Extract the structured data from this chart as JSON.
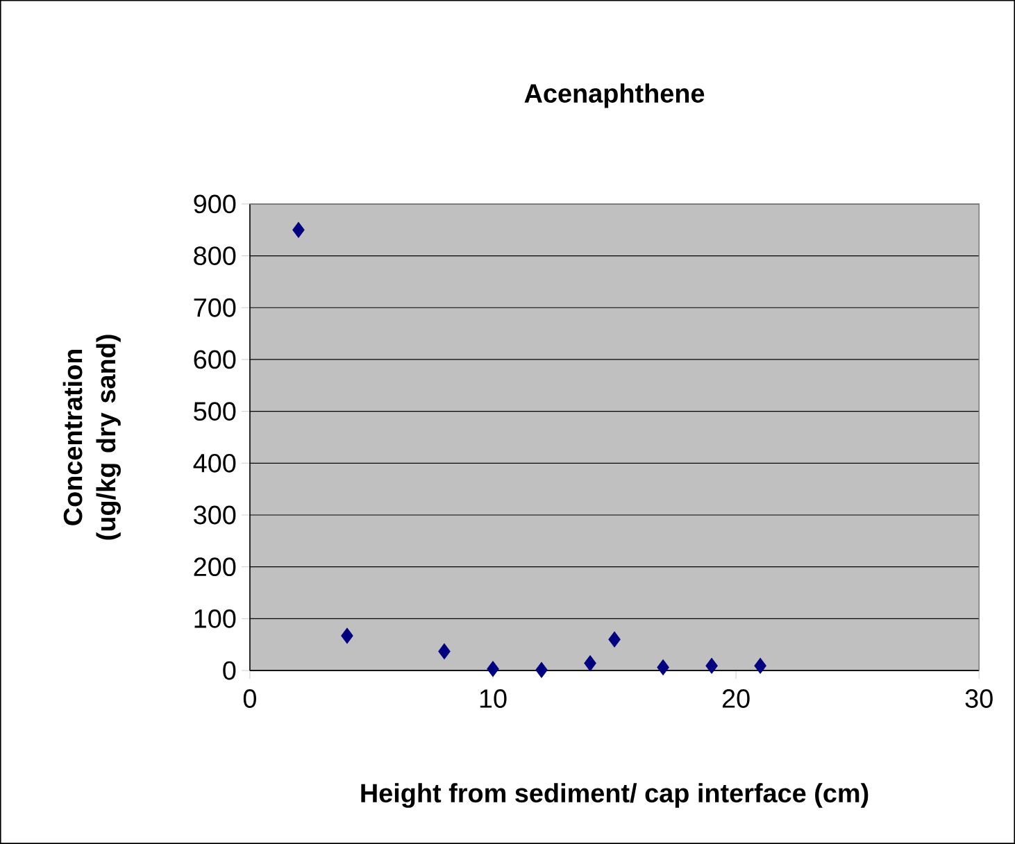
{
  "chart_data": {
    "type": "scatter",
    "title": "Acenaphthene",
    "xlabel": "Height from sediment/ cap interface (cm)",
    "ylabel": "Concentration (ug/kg dry sand)",
    "x": [
      2,
      4,
      8,
      10,
      12,
      14,
      15,
      17,
      19,
      21
    ],
    "series": [
      {
        "color": "#000080",
        "values": [
          850,
          67,
          37,
          3,
          1,
          14,
          60,
          6,
          9,
          9
        ]
      }
    ],
    "xlim": [
      0,
      30
    ],
    "xticks": [
      0,
      10,
      20,
      30
    ],
    "ylim": [
      0,
      900
    ],
    "yticks": [
      0,
      100,
      200,
      300,
      400,
      500,
      600,
      700,
      800,
      900
    ],
    "grid": "y",
    "marker": "diamond"
  }
}
